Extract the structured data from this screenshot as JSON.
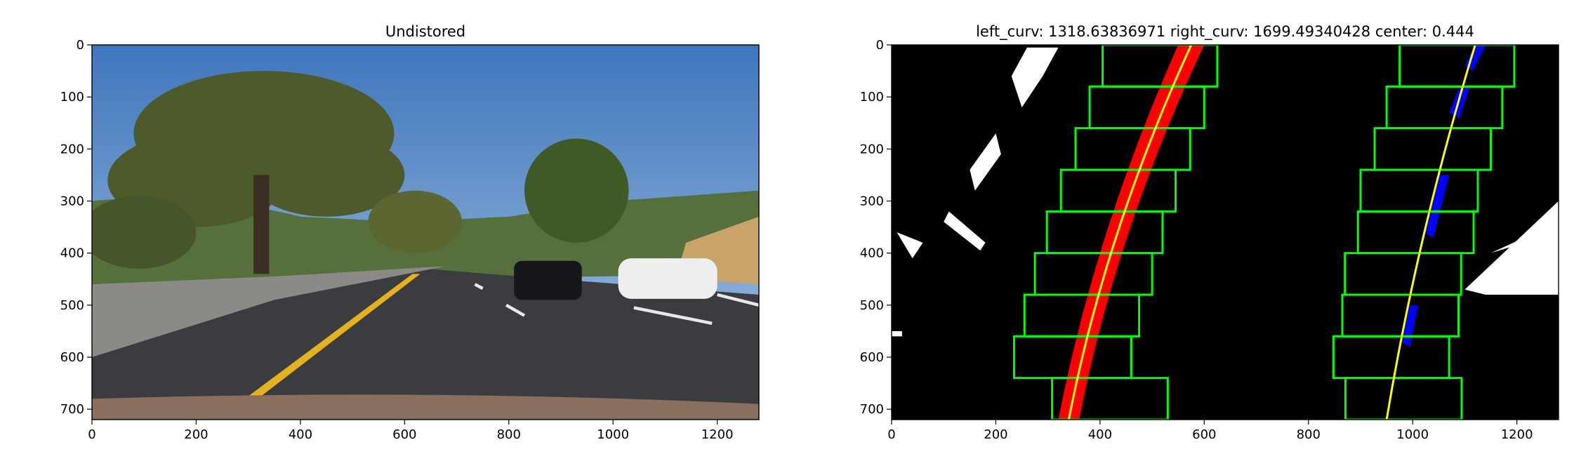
{
  "chart_data": [
    {
      "type": "image",
      "title": "Undistored",
      "xlim": [
        0,
        1280
      ],
      "ylim": [
        720,
        0
      ],
      "xticks": [
        0,
        200,
        400,
        600,
        800,
        1000,
        1200
      ],
      "yticks": [
        0,
        100,
        200,
        300,
        400,
        500,
        600,
        700
      ]
    },
    {
      "type": "image",
      "title": "left_curv: 1318.63836971 right_curv: 1699.49340428 center: 0.444",
      "xlim": [
        0,
        1280
      ],
      "ylim": [
        720,
        0
      ],
      "xticks": [
        0,
        200,
        400,
        600,
        800,
        1000,
        1200
      ],
      "yticks": [
        0,
        100,
        200,
        300,
        400,
        500,
        600,
        700
      ]
    }
  ]
}
